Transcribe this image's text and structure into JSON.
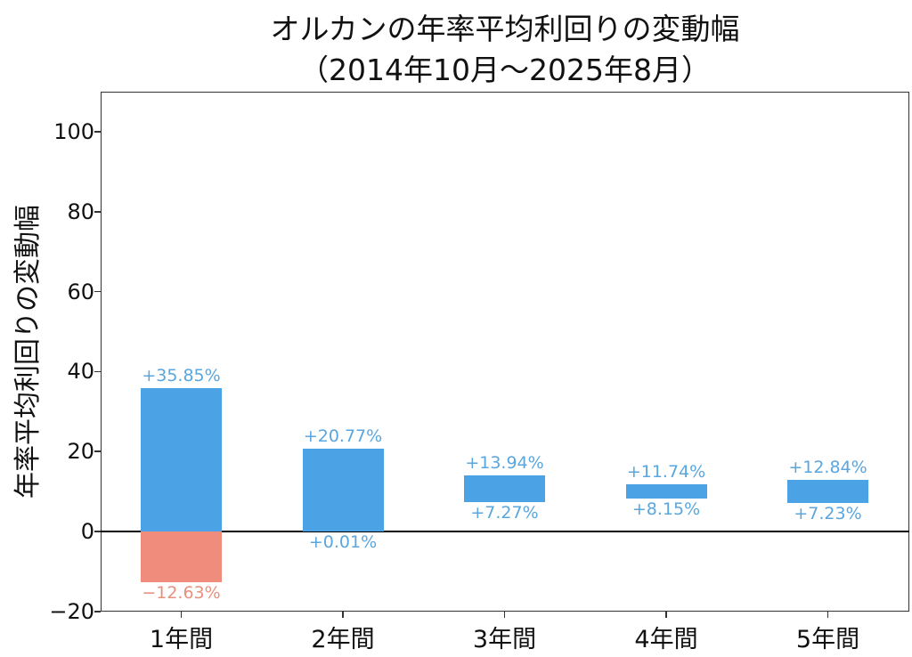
{
  "title_line1": "オルカンの年率平均利回りの変動幅",
  "title_line2": "（2014年10月～2025年8月）",
  "colors": {
    "positive": "#4ba3e6",
    "negative": "#f08c7c",
    "pos_label": "#5aa6de",
    "neg_label": "#e8907e"
  },
  "chart_data": {
    "type": "bar",
    "title": "オルカンの年率平均利回りの変動幅（2014年10月～2025年8月）",
    "xlabel": "",
    "ylabel": "年率平均利回りの変動幅",
    "ylim": [
      -20,
      110
    ],
    "yticks": [
      -20,
      0,
      20,
      40,
      60,
      80,
      100
    ],
    "ytick_labels": [
      "−20",
      "0",
      "20",
      "40",
      "60",
      "80",
      "100"
    ],
    "grid": false,
    "categories": [
      "1年間",
      "2年間",
      "3年間",
      "4年間",
      "5年間"
    ],
    "series": [
      {
        "name": "max",
        "values": [
          35.85,
          20.77,
          13.94,
          11.74,
          12.84
        ],
        "labels": [
          "+35.85%",
          "+20.77%",
          "+13.94%",
          "+11.74%",
          "+12.84%"
        ]
      },
      {
        "name": "min",
        "values": [
          -12.63,
          0.01,
          7.27,
          8.15,
          7.23
        ],
        "labels": [
          "−12.63%",
          "+0.01%",
          "+7.27%",
          "+8.15%",
          "+7.23%"
        ]
      }
    ]
  }
}
